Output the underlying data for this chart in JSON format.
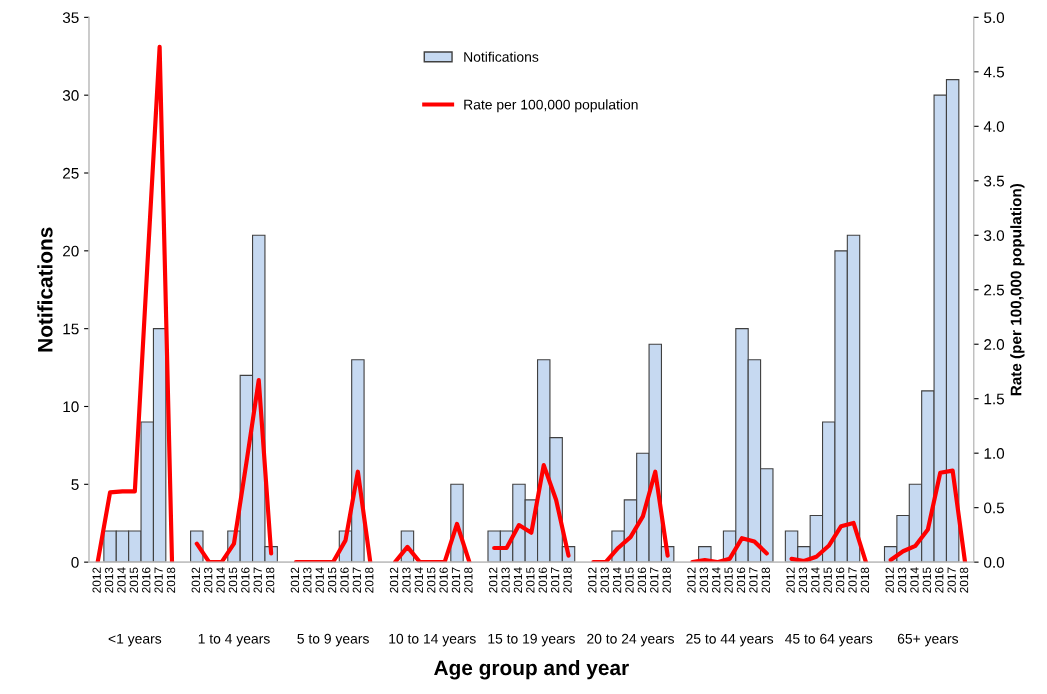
{
  "chart_data": {
    "type": "bar",
    "xlabel": "Age group and year",
    "ylabel": "Notifications",
    "y2label": "Rate (per 100,000 population)",
    "categories": [
      "2012",
      "2013",
      "2014",
      "2015",
      "2016",
      "2017",
      "2018",
      null,
      "2012",
      "2013",
      "2014",
      "2015",
      "2016",
      "2017",
      "2018",
      null,
      "2012",
      "2013",
      "2014",
      "2015",
      "2016",
      "2017",
      "2018",
      null,
      "2012",
      "2013",
      "2014",
      "2015",
      "2016",
      "2017",
      "2018",
      null,
      "2012",
      "2013",
      "2014",
      "2015",
      "2016",
      "2017",
      "2018",
      null,
      "2012",
      "2013",
      "2014",
      "2015",
      "2016",
      "2017",
      "2018",
      null,
      "2012",
      "2013",
      "2014",
      "2015",
      "2016",
      "2017",
      "2018",
      null,
      "2012",
      "2013",
      "2014",
      "2015",
      "2016",
      "2017",
      "2018",
      null,
      "2012",
      "2013",
      "2014",
      "2015",
      "2016",
      "2017",
      "2018"
    ],
    "series": [
      {
        "name": "Notifications",
        "color": "#c6d9f1",
        "values": [
          0,
          2,
          2,
          2,
          9,
          15,
          0,
          null,
          2,
          0,
          0,
          2,
          12,
          21,
          1,
          null,
          0,
          0,
          0,
          0,
          2,
          13,
          0,
          null,
          0,
          2,
          0,
          0,
          0,
          5,
          0,
          null,
          2,
          2,
          5,
          4,
          13,
          8,
          1,
          null,
          0,
          0,
          2,
          4,
          7,
          14,
          1,
          null,
          0,
          1,
          0,
          2,
          15,
          13,
          6,
          null,
          2,
          1,
          3,
          9,
          20,
          21,
          0,
          null,
          1,
          3,
          5,
          11,
          30,
          31,
          0
        ]
      },
      {
        "name": "Rate per 100,000 population",
        "type": "line",
        "axis": "y2",
        "color": "#ff0000",
        "values": [
          0,
          0.64,
          0.65,
          0.65,
          2.7,
          4.73,
          0,
          null,
          0.17,
          0,
          0,
          0.17,
          0.91,
          1.67,
          0.08,
          null,
          0,
          0,
          0,
          0,
          0.2,
          0.83,
          0,
          null,
          0,
          0.14,
          0,
          0,
          0,
          0.35,
          0,
          null,
          0.13,
          0.13,
          0.34,
          0.27,
          0.89,
          0.57,
          0.06,
          null,
          0,
          0,
          0.13,
          0.23,
          0.42,
          0.83,
          0.06,
          null,
          0,
          0.02,
          0,
          0.03,
          0.22,
          0.19,
          0.08,
          null,
          0.03,
          0.01,
          0.05,
          0.15,
          0.33,
          0.36,
          0,
          null,
          0.02,
          0.1,
          0.15,
          0.3,
          0.82,
          0.84,
          0
        ]
      }
    ],
    "ylim": [
      0,
      35
    ],
    "yticks": [
      0,
      5,
      10,
      15,
      20,
      25,
      30,
      35
    ],
    "y2lim": [
      0,
      5
    ],
    "y2ticks": [
      {
        "value": 0,
        "label": "0.0"
      },
      {
        "value": 0.5,
        "label": "0.5"
      },
      {
        "value": 1,
        "label": "1.0"
      },
      {
        "value": 1.5,
        "label": "1.5"
      },
      {
        "value": 2,
        "label": "2.0"
      },
      {
        "value": 2.5,
        "label": "2.5"
      },
      {
        "value": 3,
        "label": "3.0"
      },
      {
        "value": 3.5,
        "label": "3.5"
      },
      {
        "value": 4,
        "label": "4.0"
      },
      {
        "value": 4.5,
        "label": "4.5"
      },
      {
        "value": 5,
        "label": "5.0"
      }
    ],
    "annotations": [
      "<1 years",
      "1 to 4 years",
      "5 to 9 years",
      "10 to 14 years",
      "15 to 19 years",
      "20 to 24 years",
      "25 to 44 years",
      "45 to 64 years",
      "65+ years"
    ],
    "legend": "top",
    "grid": false
  }
}
